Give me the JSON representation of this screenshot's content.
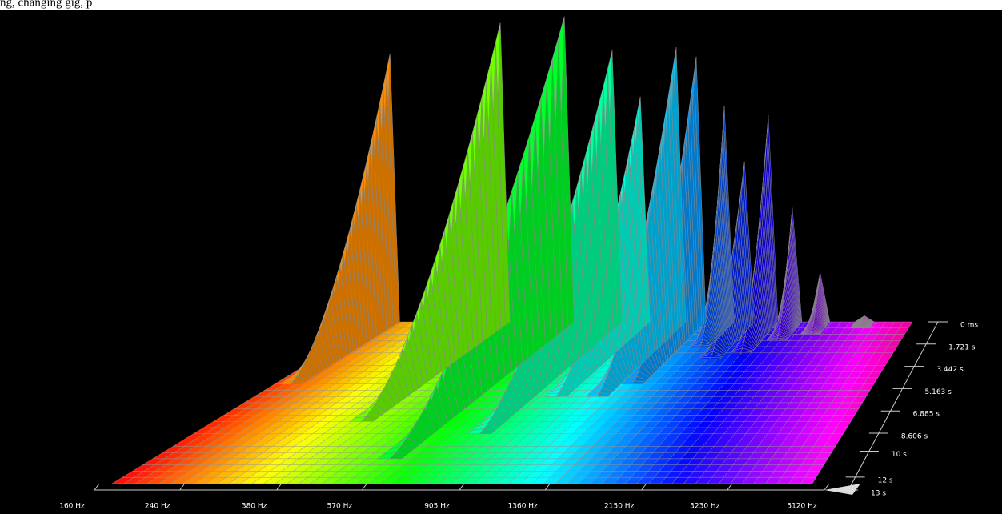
{
  "caption": "ng, changing gig, p",
  "chart_data": {
    "type": "waterfall",
    "xscale": "log",
    "xlim": [
      160,
      5120
    ],
    "xticks": [
      {
        "value": 160,
        "label": "160 Hz"
      },
      {
        "value": 240,
        "label": "240 Hz"
      },
      {
        "value": 380,
        "label": "380 Hz"
      },
      {
        "value": 570,
        "label": "570 Hz"
      },
      {
        "value": 905,
        "label": "905 Hz"
      },
      {
        "value": 1360,
        "label": "1360 Hz"
      },
      {
        "value": 2150,
        "label": "2150 Hz"
      },
      {
        "value": 3230,
        "label": "3230 Hz"
      },
      {
        "value": 5120,
        "label": "5120 Hz"
      }
    ],
    "tlim": [
      0,
      13
    ],
    "tticks": [
      {
        "value": 0,
        "label": "0 ms"
      },
      {
        "value": 1.721,
        "label": "1.721 s"
      },
      {
        "value": 3.442,
        "label": "3.442 s"
      },
      {
        "value": 5.163,
        "label": "5.163 s"
      },
      {
        "value": 6.885,
        "label": "6.885 s"
      },
      {
        "value": 8.606,
        "label": "8.606 s"
      },
      {
        "value": 10,
        "label": "10 s"
      },
      {
        "value": 12,
        "label": "12 s"
      },
      {
        "value": 13,
        "label": "13 s"
      }
    ],
    "zlim": [
      0,
      100
    ],
    "series": [
      {
        "x": [
          175,
          357,
          540,
          736,
          883,
          1113,
          1267,
          1519,
          1730,
          2017,
          2355,
          2820,
          3756
        ],
        "values": [
          87,
          97,
          99,
          88,
          73,
          89,
          86,
          70,
          52,
          67,
          37,
          16,
          2
        ],
        "durations": [
          5,
          8,
          11,
          9,
          6,
          6,
          5,
          2,
          3,
          2.5,
          1.5,
          1,
          0.5
        ]
      }
    ]
  }
}
